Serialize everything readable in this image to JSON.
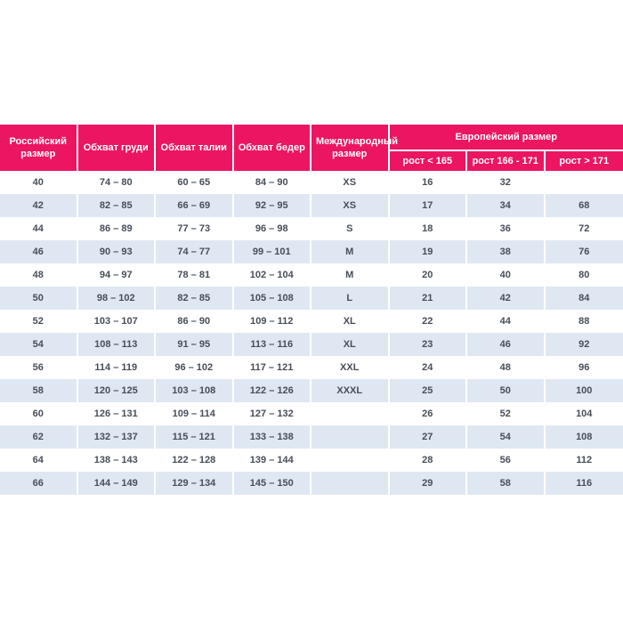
{
  "colors": {
    "header_bg": "#ec1561",
    "row_alt_bg": "#dfe8f2",
    "row_bg": "#ffffff",
    "cell_text": "#474e58",
    "header_text": "#ffffff"
  },
  "chart_data": {
    "type": "table",
    "header_groups": {
      "european_size": "Европейский размер"
    },
    "columns": [
      "Российский размер",
      "Обхват груди",
      "Обхват талии",
      "Обхват бедер",
      "Международный размер",
      "рост < 165",
      "рост 166 - 171",
      "рост > 171"
    ],
    "rows": [
      [
        "40",
        "74 – 80",
        "60 – 65",
        "84 – 90",
        "XS",
        "16",
        "32",
        ""
      ],
      [
        "42",
        "82 – 85",
        "66 – 69",
        "92 – 95",
        "XS",
        "17",
        "34",
        "68"
      ],
      [
        "44",
        "86 – 89",
        "77 – 73",
        "96 – 98",
        "S",
        "18",
        "36",
        "72"
      ],
      [
        "46",
        "90 – 93",
        "74 – 77",
        "99 – 101",
        "M",
        "19",
        "38",
        "76"
      ],
      [
        "48",
        "94 – 97",
        "78 – 81",
        "102 – 104",
        "M",
        "20",
        "40",
        "80"
      ],
      [
        "50",
        "98 – 102",
        "82 – 85",
        "105 – 108",
        "L",
        "21",
        "42",
        "84"
      ],
      [
        "52",
        "103 – 107",
        "86 – 90",
        "109 – 112",
        "XL",
        "22",
        "44",
        "88"
      ],
      [
        "54",
        "108 – 113",
        "91 – 95",
        "113 – 116",
        "XL",
        "23",
        "46",
        "92"
      ],
      [
        "56",
        "114 – 119",
        "96 – 102",
        "117 – 121",
        "XXL",
        "24",
        "48",
        "96"
      ],
      [
        "58",
        "120 – 125",
        "103 – 108",
        "122 – 126",
        "XXXL",
        "25",
        "50",
        "100"
      ],
      [
        "60",
        "126 – 131",
        "109 – 114",
        "127 – 132",
        "",
        "26",
        "52",
        "104"
      ],
      [
        "62",
        "132 – 137",
        "115 – 121",
        "133 – 138",
        "",
        "27",
        "54",
        "108"
      ],
      [
        "64",
        "138 – 143",
        "122 – 128",
        "139 – 144",
        "",
        "28",
        "56",
        "112"
      ],
      [
        "66",
        "144 – 149",
        "129 – 134",
        "145 – 150",
        "",
        "29",
        "58",
        "116"
      ]
    ]
  }
}
